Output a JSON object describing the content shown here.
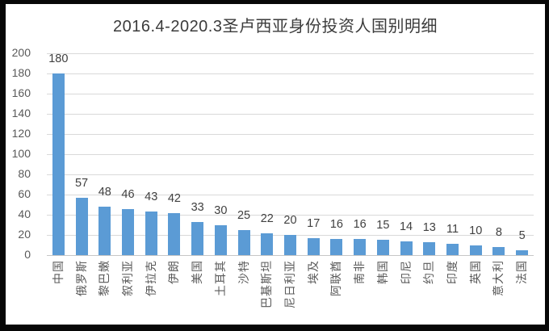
{
  "frame": {
    "border_color": "#070707",
    "background_color": "#ffffff"
  },
  "chart_data": {
    "type": "bar",
    "title": "2016.4-2020.3圣卢西亚身份投资人国别明细",
    "categories": [
      "中国",
      "俄罗斯",
      "黎巴嫩",
      "叙利亚",
      "伊拉克",
      "伊朗",
      "美国",
      "土耳其",
      "沙特",
      "巴基斯坦",
      "尼日利亚",
      "埃及",
      "阿联酋",
      "南非",
      "韩国",
      "印尼",
      "约旦",
      "印度",
      "英国",
      "意大利",
      "法国"
    ],
    "values": [
      180,
      57,
      48,
      46,
      43,
      42,
      33,
      30,
      25,
      22,
      20,
      17,
      16,
      16,
      15,
      14,
      13,
      11,
      10,
      8,
      5
    ],
    "data_labels_shown": true,
    "xlabel": "",
    "ylabel": "",
    "ylim": [
      0,
      200
    ],
    "yticks": [
      0,
      20,
      40,
      60,
      80,
      100,
      120,
      140,
      160,
      180,
      200
    ],
    "grid": true,
    "legend": "none",
    "bar_color": "#5b9bd5",
    "gridline_color": "#d9d9d9",
    "axis_line_color": "#c6c6c6",
    "value_label_color": "#404040",
    "tick_label_color": "#595959",
    "title_color": "#3b3b3b"
  }
}
